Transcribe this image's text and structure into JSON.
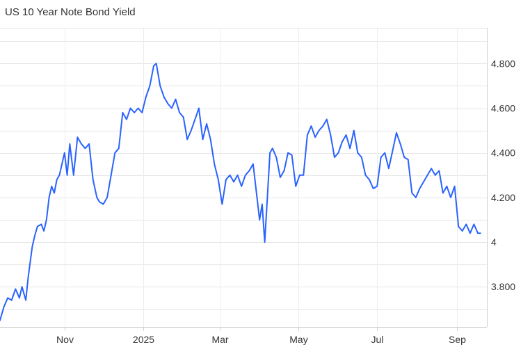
{
  "chart_data": {
    "type": "line",
    "title": "US 10 Year Note Bond Yield",
    "xlabel": "",
    "ylabel": "",
    "x_ticks": [
      "Nov",
      "2025",
      "Mar",
      "May",
      "Jul",
      "Sep"
    ],
    "x_tick_dates": [
      "2024-11-01",
      "2025-01-01",
      "2025-03-01",
      "2025-05-01",
      "2025-07-01",
      "2025-09-01"
    ],
    "y_ticks": [
      3.8,
      4.0,
      4.2,
      4.4,
      4.6,
      4.8
    ],
    "y_tick_labels": [
      "3.800",
      "4",
      "4.200",
      "4.400",
      "4.600",
      "4.800"
    ],
    "ylim": [
      3.62,
      4.96
    ],
    "xlim": [
      "2024-09-12",
      "2025-09-24"
    ],
    "grid": true,
    "y_axis_position": "right",
    "color": "#2962ff",
    "series": [
      {
        "x": [
          "2024-09-12",
          "2024-09-15",
          "2024-09-18",
          "2024-09-21",
          "2024-09-24",
          "2024-09-27",
          "2024-09-29",
          "2024-10-02",
          "2024-10-04",
          "2024-10-07",
          "2024-10-09",
          "2024-10-11",
          "2024-10-14",
          "2024-10-16",
          "2024-10-18",
          "2024-10-20",
          "2024-10-22",
          "2024-10-24",
          "2024-10-26",
          "2024-10-28",
          "2024-10-30",
          "2024-11-01",
          "2024-11-03",
          "2024-11-05",
          "2024-11-08",
          "2024-11-11",
          "2024-11-14",
          "2024-11-17",
          "2024-11-20",
          "2024-11-23",
          "2024-11-26",
          "2024-11-28",
          "2024-12-01",
          "2024-12-04",
          "2024-12-07",
          "2024-12-10",
          "2024-12-13",
          "2024-12-16",
          "2024-12-19",
          "2024-12-22",
          "2024-12-25",
          "2024-12-28",
          "2024-12-31",
          "2025-01-03",
          "2025-01-06",
          "2025-01-09",
          "2025-01-11",
          "2025-01-14",
          "2025-01-17",
          "2025-01-20",
          "2025-01-23",
          "2025-01-26",
          "2025-01-29",
          "2025-02-01",
          "2025-02-04",
          "2025-02-07",
          "2025-02-10",
          "2025-02-13",
          "2025-02-16",
          "2025-02-19",
          "2025-02-22",
          "2025-02-25",
          "2025-02-28",
          "2025-03-03",
          "2025-03-06",
          "2025-03-09",
          "2025-03-12",
          "2025-03-15",
          "2025-03-18",
          "2025-03-21",
          "2025-03-24",
          "2025-03-27",
          "2025-03-30",
          "2025-04-01",
          "2025-04-03",
          "2025-04-05",
          "2025-04-07",
          "2025-04-09",
          "2025-04-11",
          "2025-04-14",
          "2025-04-17",
          "2025-04-20",
          "2025-04-23",
          "2025-04-26",
          "2025-04-29",
          "2025-05-02",
          "2025-05-05",
          "2025-05-08",
          "2025-05-11",
          "2025-05-14",
          "2025-05-17",
          "2025-05-20",
          "2025-05-23",
          "2025-05-26",
          "2025-05-29",
          "2025-06-01",
          "2025-06-04",
          "2025-06-07",
          "2025-06-10",
          "2025-06-13",
          "2025-06-16",
          "2025-06-19",
          "2025-06-22",
          "2025-06-25",
          "2025-06-28",
          "2025-07-01",
          "2025-07-04",
          "2025-07-07",
          "2025-07-10",
          "2025-07-13",
          "2025-07-16",
          "2025-07-19",
          "2025-07-22",
          "2025-07-25",
          "2025-07-28",
          "2025-07-31",
          "2025-08-03",
          "2025-08-06",
          "2025-08-09",
          "2025-08-12",
          "2025-08-15",
          "2025-08-18",
          "2025-08-21",
          "2025-08-24",
          "2025-08-27",
          "2025-08-30",
          "2025-09-02",
          "2025-09-05",
          "2025-09-08",
          "2025-09-11",
          "2025-09-14",
          "2025-09-17",
          "2025-09-19"
        ],
        "y": [
          3.65,
          3.71,
          3.75,
          3.74,
          3.79,
          3.75,
          3.8,
          3.74,
          3.85,
          3.98,
          4.03,
          4.07,
          4.08,
          4.05,
          4.1,
          4.2,
          4.25,
          4.22,
          4.28,
          4.3,
          4.35,
          4.4,
          4.3,
          4.44,
          4.3,
          4.47,
          4.44,
          4.42,
          4.44,
          4.28,
          4.2,
          4.18,
          4.17,
          4.2,
          4.3,
          4.4,
          4.42,
          4.58,
          4.55,
          4.6,
          4.58,
          4.6,
          4.58,
          4.65,
          4.7,
          4.79,
          4.8,
          4.7,
          4.65,
          4.62,
          4.6,
          4.64,
          4.58,
          4.56,
          4.46,
          4.5,
          4.55,
          4.6,
          4.46,
          4.53,
          4.46,
          4.35,
          4.28,
          4.17,
          4.28,
          4.3,
          4.27,
          4.3,
          4.25,
          4.3,
          4.32,
          4.35,
          4.2,
          4.1,
          4.17,
          4.0,
          4.2,
          4.4,
          4.42,
          4.38,
          4.29,
          4.32,
          4.4,
          4.39,
          4.25,
          4.3,
          4.3,
          4.48,
          4.52,
          4.47,
          4.5,
          4.52,
          4.55,
          4.48,
          4.38,
          4.4,
          4.45,
          4.48,
          4.42,
          4.5,
          4.4,
          4.38,
          4.3,
          4.28,
          4.24,
          4.25,
          4.38,
          4.4,
          4.33,
          4.41,
          4.49,
          4.44,
          4.38,
          4.37,
          4.22,
          4.2,
          4.24,
          4.27,
          4.3,
          4.33,
          4.3,
          4.32,
          4.22,
          4.25,
          4.2,
          4.25,
          4.07,
          4.05,
          4.08,
          4.04,
          4.08,
          4.04,
          4.04
        ]
      }
    ]
  }
}
